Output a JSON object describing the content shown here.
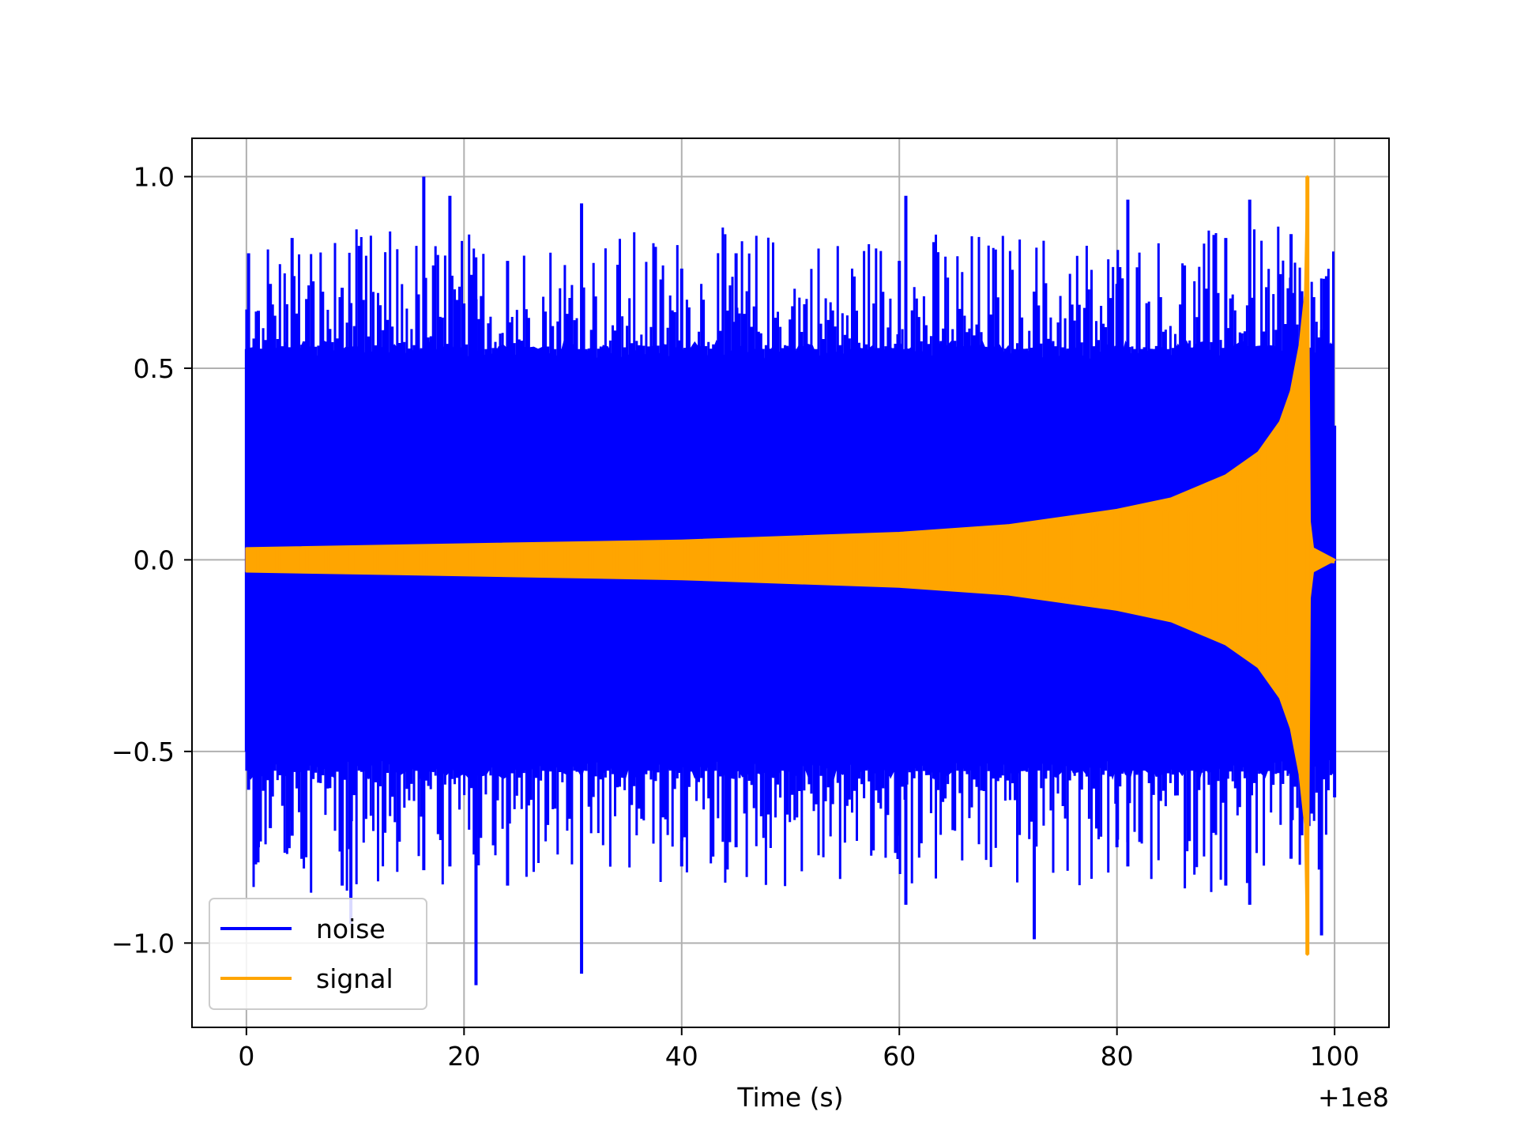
{
  "chart_data": {
    "type": "line",
    "xlabel": "Time (s)",
    "ylabel": "",
    "x_offset_label": "+1e8",
    "xlim": [
      -5,
      105
    ],
    "ylim": [
      -1.22,
      1.1
    ],
    "xticks": [
      0,
      20,
      40,
      60,
      80,
      100
    ],
    "yticks": [
      -1.0,
      -0.5,
      0.0,
      0.5,
      1.0
    ],
    "xtick_labels": [
      "0",
      "20",
      "40",
      "60",
      "80",
      "100"
    ],
    "ytick_labels": [
      "−1.0",
      "−0.5",
      "0.0",
      "0.5",
      "1.0"
    ],
    "grid": true,
    "legend": {
      "position": "lower-left",
      "entries": [
        {
          "label": "noise",
          "color": "#0000ff"
        },
        {
          "label": "signal",
          "color": "#ffa500"
        }
      ]
    },
    "series": [
      {
        "name": "noise",
        "color": "#0000ff",
        "x": [
          0,
          0.2,
          1.1,
          2.2,
          4.2,
          8.8,
          9.6,
          16.3,
          18.7,
          21.1,
          24.0,
          30.8,
          40.0,
          45.0,
          60.0,
          60.6,
          72.4,
          80.0,
          81.0,
          90.0,
          92.2,
          96.0,
          98.8,
          100.0
        ],
        "y_upper": [
          0.55,
          0.8,
          0.65,
          0.72,
          0.84,
          0.71,
          0.67,
          1.0,
          0.95,
          0.68,
          0.78,
          0.93,
          0.76,
          0.8,
          0.78,
          0.95,
          0.7,
          0.72,
          0.94,
          0.84,
          0.94,
          0.85,
          0.6,
          0.35
        ],
        "y_lower": [
          -0.5,
          -0.6,
          -0.75,
          -0.7,
          -0.72,
          -0.85,
          -0.95,
          -0.81,
          -0.8,
          -1.11,
          -0.85,
          -1.08,
          -0.8,
          -0.75,
          -0.72,
          -0.9,
          -0.99,
          -0.75,
          -0.8,
          -0.85,
          -0.9,
          -0.78,
          -0.98,
          -0.62
        ]
      },
      {
        "name": "signal",
        "color": "#ffa500",
        "x": [
          0,
          20,
          40,
          60,
          70,
          80,
          85,
          90,
          93,
          95,
          96,
          96.8,
          97.3,
          97.5,
          97.7,
          98.0,
          100.0
        ],
        "y_upper": [
          0.03,
          0.04,
          0.05,
          0.07,
          0.09,
          0.13,
          0.16,
          0.22,
          0.28,
          0.36,
          0.44,
          0.56,
          0.69,
          1.0,
          0.1,
          0.03,
          0.0
        ],
        "y_lower": [
          -0.03,
          -0.04,
          -0.05,
          -0.07,
          -0.09,
          -0.13,
          -0.16,
          -0.22,
          -0.28,
          -0.36,
          -0.44,
          -0.56,
          -0.69,
          -1.03,
          -0.1,
          -0.03,
          0.0
        ]
      }
    ]
  }
}
